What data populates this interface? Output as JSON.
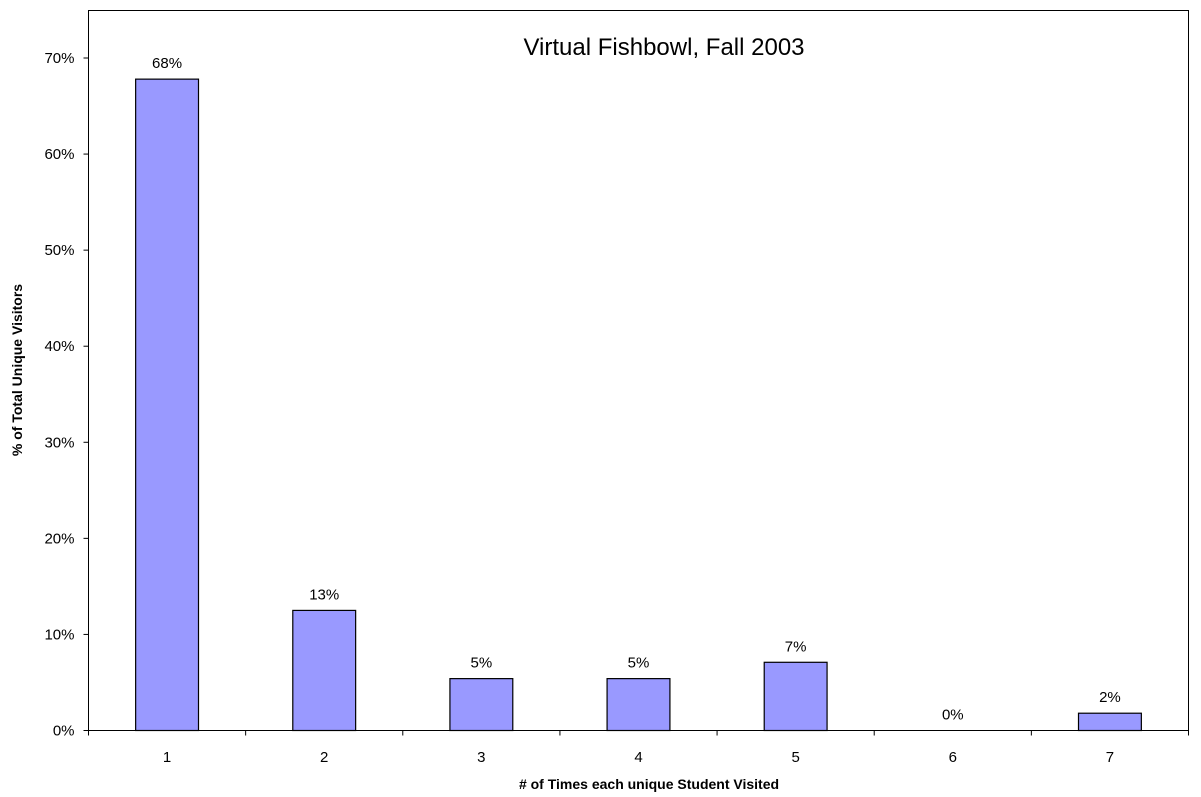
{
  "chart_data": {
    "type": "bar",
    "title": "Virtual Fishbowl, Fall 2003",
    "xlabel": "# of Times each unique Student Visited",
    "ylabel": "% of Total Unique Visitors",
    "categories": [
      "1",
      "2",
      "3",
      "4",
      "5",
      "6",
      "7"
    ],
    "values": [
      67.8,
      12.5,
      5.4,
      5.4,
      7.1,
      0,
      1.8
    ],
    "data_labels": [
      "68%",
      "13%",
      "5%",
      "5%",
      "7%",
      "0%",
      "2%"
    ],
    "ylim": [
      0,
      70
    ],
    "yticks": [
      0,
      10,
      20,
      30,
      40,
      50,
      60,
      70
    ],
    "ytick_labels": [
      "0%",
      "10%",
      "20%",
      "30%",
      "40%",
      "50%",
      "60%",
      "70%"
    ],
    "grid": false,
    "legend": false,
    "colors": {
      "bar_fill": "#9999FF",
      "bar_stroke": "#000000"
    }
  }
}
